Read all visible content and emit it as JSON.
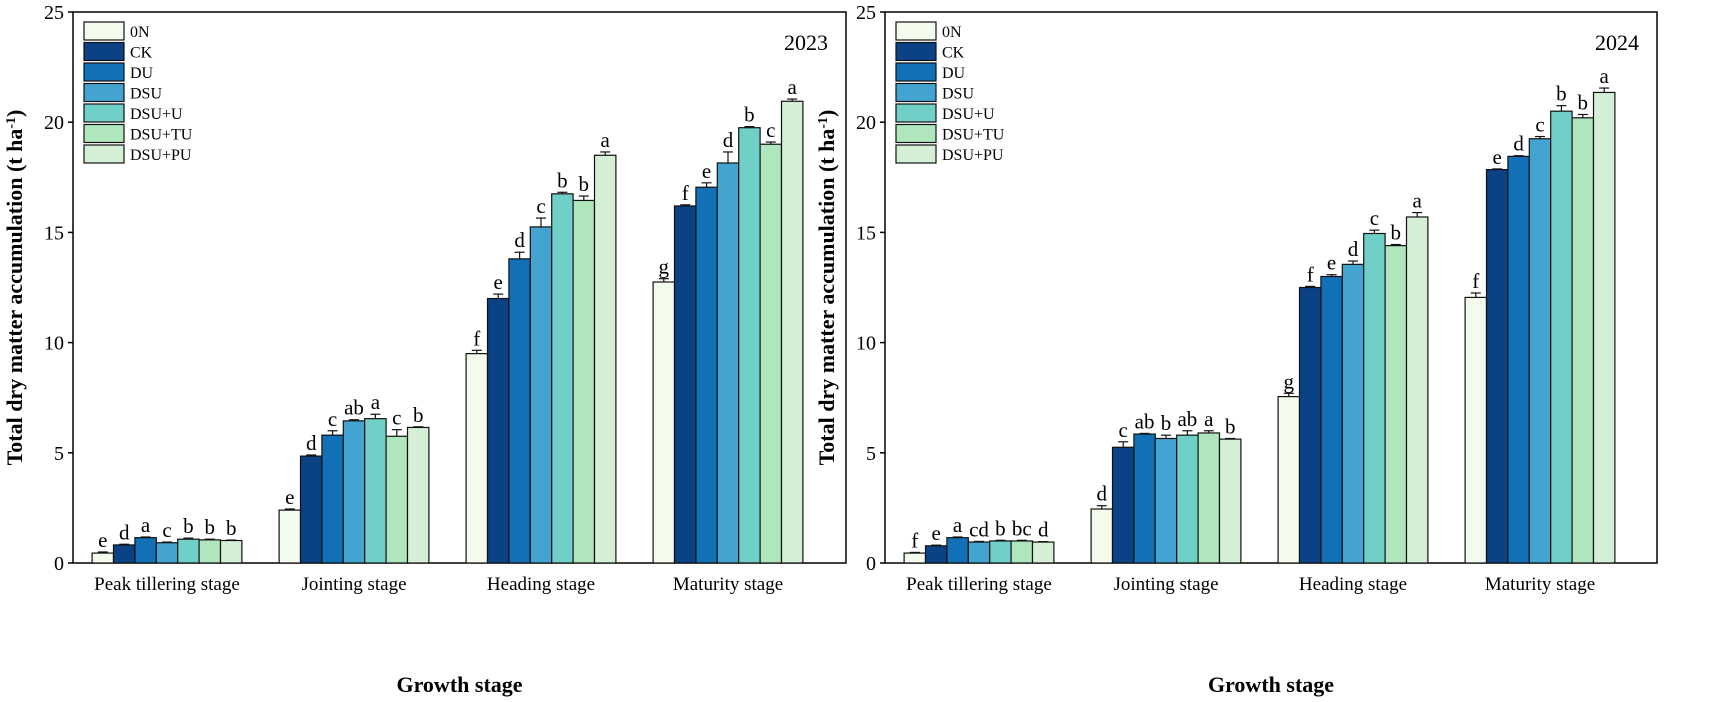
{
  "chart_data": [
    {
      "type": "bar",
      "title": "2023",
      "xlabel": "Growth stage",
      "ylabel": "Total dry matter accumulation  (t ha",
      "ylabel_unit_sup": "-1",
      "ylabel_close": ")",
      "ylim": [
        0,
        25
      ],
      "yticks": [
        0,
        5,
        10,
        15,
        20,
        25
      ],
      "legend_placement": "top-left",
      "categories": [
        "Peak tillering stage",
        "Jointing stage",
        "Heading stage",
        "Maturity stage"
      ],
      "series": [
        {
          "name": "0N",
          "color": "#f3fbec",
          "values": [
            0.45,
            2.4,
            9.5,
            12.75
          ],
          "errors": [
            0.05,
            0.05,
            0.15,
            0.15
          ],
          "letters": [
            "e",
            "e",
            "f",
            "g"
          ]
        },
        {
          "name": "CK",
          "color": "#0b4285",
          "values": [
            0.82,
            4.85,
            12.0,
            16.2
          ],
          "errors": [
            0.03,
            0.05,
            0.2,
            0.05
          ],
          "letters": [
            "d",
            "d",
            "e",
            "f"
          ]
        },
        {
          "name": "DU",
          "color": "#1271b6",
          "values": [
            1.15,
            5.8,
            13.8,
            17.05
          ],
          "errors": [
            0.03,
            0.2,
            0.3,
            0.2
          ],
          "letters": [
            "a",
            "c",
            "d",
            "e"
          ]
        },
        {
          "name": "DSU",
          "color": "#43a4d2",
          "values": [
            0.92,
            6.45,
            15.25,
            18.15
          ],
          "errors": [
            0.03,
            0.05,
            0.4,
            0.5
          ],
          "letters": [
            "c",
            "ab",
            "c",
            "d"
          ]
        },
        {
          "name": "DSU+U",
          "color": "#70cfc6",
          "values": [
            1.08,
            6.55,
            16.75,
            19.75
          ],
          "errors": [
            0.05,
            0.2,
            0.07,
            0.05
          ],
          "letters": [
            "b",
            "a",
            "b",
            "b"
          ]
        },
        {
          "name": "DSU+TU",
          "color": "#afe6bd",
          "values": [
            1.05,
            5.75,
            16.45,
            19.0
          ],
          "errors": [
            0.03,
            0.3,
            0.2,
            0.1
          ],
          "letters": [
            "b",
            "c",
            "b",
            "c"
          ]
        },
        {
          "name": "DSU+PU",
          "color": "#d5efd6",
          "values": [
            1.02,
            6.15,
            18.5,
            20.95
          ],
          "errors": [
            0.02,
            0.03,
            0.15,
            0.1
          ],
          "letters": [
            "b",
            "b",
            "a",
            "a"
          ]
        }
      ]
    },
    {
      "type": "bar",
      "title": "2024",
      "xlabel": "Growth stage",
      "ylabel": "Total dry matter accumulation  (t ha",
      "ylabel_unit_sup": "-1",
      "ylabel_close": ")",
      "ylim": [
        0,
        25
      ],
      "yticks": [
        0,
        5,
        10,
        15,
        20,
        25
      ],
      "legend_placement": "top-left",
      "categories": [
        "Peak tillering stage",
        "Jointing stage",
        "Heading stage",
        "Maturity stage"
      ],
      "series": [
        {
          "name": "0N",
          "color": "#f3fbec",
          "values": [
            0.45,
            2.45,
            7.55,
            12.05
          ],
          "errors": [
            0.03,
            0.15,
            0.15,
            0.2
          ],
          "letters": [
            "f",
            "d",
            "g",
            "f"
          ]
        },
        {
          "name": "CK",
          "color": "#0b4285",
          "values": [
            0.78,
            5.25,
            12.5,
            17.85
          ],
          "errors": [
            0.03,
            0.25,
            0.05,
            0.03
          ],
          "letters": [
            "e",
            "c",
            "f",
            "e"
          ]
        },
        {
          "name": "DU",
          "color": "#1271b6",
          "values": [
            1.15,
            5.85,
            13.0,
            18.45
          ],
          "errors": [
            0.03,
            0.03,
            0.08,
            0.03
          ],
          "letters": [
            "a",
            "ab",
            "e",
            "d"
          ]
        },
        {
          "name": "DSU",
          "color": "#43a4d2",
          "values": [
            0.95,
            5.65,
            13.55,
            19.25
          ],
          "errors": [
            0.03,
            0.15,
            0.15,
            0.1
          ],
          "letters": [
            "cd",
            "b",
            "d",
            "c"
          ]
        },
        {
          "name": "DSU+U",
          "color": "#70cfc6",
          "values": [
            1.0,
            5.8,
            14.95,
            20.5
          ],
          "errors": [
            0.03,
            0.2,
            0.15,
            0.25
          ],
          "letters": [
            "b",
            "ab",
            "c",
            "b"
          ]
        },
        {
          "name": "DSU+TU",
          "color": "#afe6bd",
          "values": [
            1.0,
            5.9,
            14.4,
            20.2
          ],
          "errors": [
            0.03,
            0.1,
            0.05,
            0.15
          ],
          "letters": [
            "bc",
            "a",
            "b",
            "b"
          ]
        },
        {
          "name": "DSU+PU",
          "color": "#d5efd6",
          "values": [
            0.95,
            5.62,
            15.7,
            21.35
          ],
          "errors": [
            0.02,
            0.03,
            0.2,
            0.2
          ],
          "letters": [
            "d",
            "b",
            "a",
            "a"
          ]
        }
      ]
    }
  ]
}
